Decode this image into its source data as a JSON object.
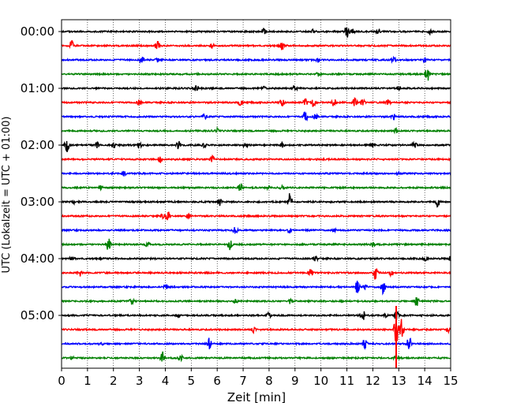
{
  "chart_data": {
    "type": "line",
    "title": "",
    "xlabel": "Zeit  [min]",
    "ylabel": "UTC (Lokalzeit = UTC + 01:00)",
    "xlim": [
      0,
      15
    ],
    "x_ticks": [
      "0",
      "1",
      "2",
      "3",
      "4",
      "5",
      "6",
      "7",
      "8",
      "9",
      "10",
      "11",
      "12",
      "13",
      "14",
      "15"
    ],
    "y_tick_labels": [
      "00:00",
      "01:00",
      "02:00",
      "03:00",
      "04:00",
      "05:00"
    ],
    "grid": "vertical dotted lines at each minute",
    "trace_colors": [
      "#000000",
      "#ff0000",
      "#0000ff",
      "#008000"
    ],
    "trace_interval_min": 15,
    "series": [
      {
        "color": "#000000",
        "events": [
          [
            7.8,
            0.5
          ],
          [
            9.7,
            0.4
          ],
          [
            11.0,
            0.9
          ],
          [
            11.2,
            0.4
          ],
          [
            12.2,
            0.4
          ],
          [
            14.2,
            0.3
          ]
        ]
      },
      {
        "color": "#ff0000",
        "events": [
          [
            0.4,
            0.8
          ],
          [
            3.7,
            0.7
          ],
          [
            5.8,
            0.3
          ],
          [
            8.5,
            0.6
          ]
        ]
      },
      {
        "color": "#0000ff",
        "events": [
          [
            3.1,
            0.4
          ],
          [
            3.7,
            0.3
          ],
          [
            9.9,
            0.4
          ],
          [
            12.8,
            0.6
          ],
          [
            14.0,
            0.4
          ]
        ]
      },
      {
        "color": "#008000",
        "events": [
          [
            9.9,
            0.4
          ],
          [
            14.1,
            1.2
          ]
        ]
      },
      {
        "color": "#000000",
        "events": [
          [
            5.2,
            0.5
          ],
          [
            7.8,
            0.3
          ],
          [
            9.0,
            0.4
          ],
          [
            13.0,
            0.3
          ]
        ]
      },
      {
        "color": "#ff0000",
        "events": [
          [
            3.0,
            0.4
          ],
          [
            6.9,
            0.5
          ],
          [
            8.5,
            0.6
          ],
          [
            9.4,
            0.5
          ],
          [
            9.7,
            0.7
          ],
          [
            10.5,
            0.6
          ],
          [
            11.3,
            0.8
          ],
          [
            11.6,
            0.5
          ],
          [
            12.6,
            0.4
          ]
        ]
      },
      {
        "color": "#0000ff",
        "events": [
          [
            5.5,
            0.4
          ],
          [
            9.4,
            1.0
          ],
          [
            9.8,
            0.4
          ],
          [
            12.8,
            0.4
          ]
        ]
      },
      {
        "color": "#008000",
        "events": [
          [
            6.0,
            0.3
          ],
          [
            12.9,
            0.3
          ]
        ]
      },
      {
        "color": "#000000",
        "events": [
          [
            0.2,
            1.3
          ],
          [
            1.4,
            0.6
          ],
          [
            2.0,
            0.4
          ],
          [
            3.0,
            0.4
          ],
          [
            4.5,
            0.7
          ],
          [
            5.5,
            0.3
          ],
          [
            7.1,
            0.4
          ],
          [
            8.5,
            0.4
          ],
          [
            12.0,
            0.3
          ],
          [
            13.6,
            0.4
          ]
        ]
      },
      {
        "color": "#ff0000",
        "events": [
          [
            3.8,
            0.5
          ],
          [
            5.8,
            0.5
          ]
        ]
      },
      {
        "color": "#0000ff",
        "events": [
          [
            2.4,
            0.5
          ],
          [
            13.0,
            0.3
          ]
        ]
      },
      {
        "color": "#008000",
        "events": [
          [
            1.5,
            0.4
          ],
          [
            6.9,
            0.6
          ],
          [
            8.0,
            0.3
          ],
          [
            8.5,
            0.4
          ]
        ]
      },
      {
        "color": "#000000",
        "events": [
          [
            0.5,
            0.3
          ],
          [
            6.1,
            0.5
          ],
          [
            8.8,
            1.3
          ],
          [
            14.5,
            0.8
          ]
        ]
      },
      {
        "color": "#ff0000",
        "events": [
          [
            3.9,
            0.5
          ],
          [
            4.1,
            0.7
          ],
          [
            4.9,
            0.3
          ]
        ]
      },
      {
        "color": "#0000ff",
        "events": [
          [
            6.7,
            0.5
          ],
          [
            8.8,
            0.4
          ],
          [
            10.5,
            0.3
          ]
        ]
      },
      {
        "color": "#008000",
        "events": [
          [
            1.8,
            1.0
          ],
          [
            3.3,
            0.4
          ],
          [
            6.5,
            0.8
          ],
          [
            12.0,
            0.3
          ]
        ]
      },
      {
        "color": "#000000",
        "events": [
          [
            0.4,
            0.3
          ],
          [
            9.8,
            0.4
          ],
          [
            14.0,
            0.3
          ],
          [
            15.0,
            0.4
          ]
        ]
      },
      {
        "color": "#ff0000",
        "events": [
          [
            0.7,
            0.6
          ],
          [
            9.6,
            0.6
          ],
          [
            12.1,
            1.0
          ],
          [
            12.7,
            0.4
          ]
        ]
      },
      {
        "color": "#0000ff",
        "events": [
          [
            4.0,
            0.4
          ],
          [
            11.4,
            1.0
          ],
          [
            11.7,
            0.4
          ],
          [
            12.4,
            1.3
          ]
        ]
      },
      {
        "color": "#008000",
        "events": [
          [
            2.7,
            0.4
          ],
          [
            6.7,
            0.3
          ],
          [
            8.8,
            0.3
          ],
          [
            13.7,
            0.9
          ]
        ]
      },
      {
        "color": "#000000",
        "events": [
          [
            4.5,
            0.3
          ],
          [
            8.0,
            0.4
          ],
          [
            11.6,
            1.2
          ],
          [
            12.5,
            0.3
          ],
          [
            12.9,
            0.8
          ]
        ]
      },
      {
        "color": "#ff0000",
        "events": [
          [
            7.4,
            0.4
          ],
          [
            12.9,
            2.2
          ],
          [
            13.1,
            1.5
          ],
          [
            14.9,
            0.4
          ]
        ]
      },
      {
        "color": "#0000ff",
        "events": [
          [
            1.5,
            0.3
          ],
          [
            5.7,
            0.9
          ],
          [
            11.7,
            0.8
          ],
          [
            13.4,
            1.2
          ]
        ]
      },
      {
        "color": "#008000",
        "events": [
          [
            0.4,
            0.2
          ],
          [
            3.9,
            0.9
          ],
          [
            4.6,
            0.4
          ],
          [
            12.9,
            0.3
          ]
        ]
      }
    ],
    "spikes": [
      {
        "x": 12.9,
        "y_top_trace": 20,
        "y_bottom_trace": 23,
        "color": "#ff0000"
      }
    ]
  }
}
